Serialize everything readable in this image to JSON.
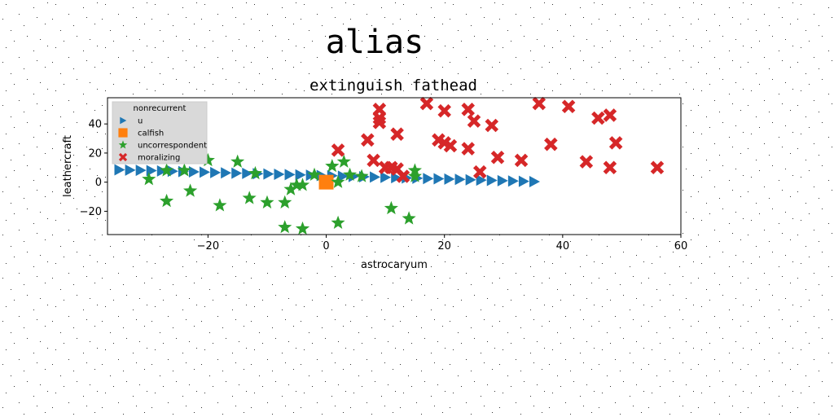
{
  "chart_data": {
    "type": "scatter",
    "suptitle": "alias",
    "title": "extinguish fathead",
    "xlabel": "astrocaryum",
    "ylabel": "leathercraft",
    "xlim": [
      -37,
      60
    ],
    "ylim": [
      -36,
      58
    ],
    "xticks": [
      -20,
      0,
      20,
      40,
      60
    ],
    "yticks": [
      -20,
      0,
      20,
      40
    ],
    "xtick_labels": [
      "−20",
      "0",
      "20",
      "40",
      "60"
    ],
    "ytick_labels": [
      "−20",
      "0",
      "20",
      "40"
    ],
    "grid": false,
    "legend": {
      "title": "nonrecurrent",
      "placement": "top-left"
    },
    "series": [
      {
        "name": "u",
        "marker": "triangle-right",
        "color": "#1f77b4",
        "points": [
          [
            -35,
            8.5
          ],
          [
            -33.2,
            8.3
          ],
          [
            -31.4,
            8.1
          ],
          [
            -29.6,
            7.9
          ],
          [
            -27.8,
            7.7
          ],
          [
            -26,
            7.5
          ],
          [
            -24.2,
            7.3
          ],
          [
            -22.4,
            7.1
          ],
          [
            -20.6,
            6.9
          ],
          [
            -18.8,
            6.6
          ],
          [
            -17,
            6.4
          ],
          [
            -15.2,
            6.2
          ],
          [
            -13.4,
            6
          ],
          [
            -11.6,
            5.8
          ],
          [
            -9.8,
            5.6
          ],
          [
            -8,
            5.4
          ],
          [
            -6.2,
            5.2
          ],
          [
            -4.4,
            5
          ],
          [
            -2.6,
            4.8
          ],
          [
            -0.8,
            4.6
          ],
          [
            1,
            4.4
          ],
          [
            2.8,
            4.1
          ],
          [
            4.6,
            3.9
          ],
          [
            6.4,
            3.7
          ],
          [
            8.2,
            3.5
          ],
          [
            10,
            3.3
          ],
          [
            11.8,
            3.1
          ],
          [
            13.6,
            2.9
          ],
          [
            15.4,
            2.7
          ],
          [
            17.2,
            2.5
          ],
          [
            19,
            2.3
          ],
          [
            20.8,
            2.1
          ],
          [
            22.6,
            1.9
          ],
          [
            24.4,
            1.6
          ],
          [
            26.2,
            1.4
          ],
          [
            28,
            1.2
          ],
          [
            29.8,
            1
          ],
          [
            31.6,
            0.8
          ],
          [
            33.4,
            0.6
          ],
          [
            35.2,
            0.4
          ]
        ]
      },
      {
        "name": "calfish",
        "marker": "square",
        "color": "#ff7f0e",
        "points": [
          [
            0,
            0
          ]
        ]
      },
      {
        "name": "uncorrespondent",
        "marker": "star",
        "color": "#2ca02c",
        "points": [
          [
            -30,
            2
          ],
          [
            -27,
            -13
          ],
          [
            -27,
            8
          ],
          [
            -24,
            8
          ],
          [
            -23,
            -6
          ],
          [
            -20,
            15
          ],
          [
            -18,
            -16
          ],
          [
            -15,
            14
          ],
          [
            -13,
            -11
          ],
          [
            -12,
            6
          ],
          [
            -10,
            -14
          ],
          [
            -7,
            -14
          ],
          [
            -7,
            -31
          ],
          [
            -6,
            -5
          ],
          [
            -5,
            -2
          ],
          [
            -4,
            -32
          ],
          [
            -4,
            -2
          ],
          [
            -2,
            5
          ],
          [
            1,
            11
          ],
          [
            2,
            -28
          ],
          [
            2,
            0
          ],
          [
            3,
            14
          ],
          [
            4,
            5
          ],
          [
            6,
            4
          ],
          [
            11,
            -18
          ],
          [
            14,
            -25
          ],
          [
            15,
            4
          ],
          [
            15,
            8
          ]
        ]
      },
      {
        "name": "moralizing",
        "marker": "x",
        "color": "#d62728",
        "points": [
          [
            2,
            22
          ],
          [
            7,
            29
          ],
          [
            8,
            15
          ],
          [
            9,
            50
          ],
          [
            9,
            44
          ],
          [
            9,
            41
          ],
          [
            10,
            10
          ],
          [
            11,
            10
          ],
          [
            12,
            9
          ],
          [
            12,
            33
          ],
          [
            13,
            4
          ],
          [
            17,
            54
          ],
          [
            19,
            29
          ],
          [
            20,
            49
          ],
          [
            20,
            27
          ],
          [
            21,
            25
          ],
          [
            24,
            23
          ],
          [
            24,
            50
          ],
          [
            25,
            42
          ],
          [
            26,
            7
          ],
          [
            28,
            39
          ],
          [
            29,
            17
          ],
          [
            33,
            15
          ],
          [
            36,
            54
          ],
          [
            38,
            26
          ],
          [
            41,
            52
          ],
          [
            44,
            14
          ],
          [
            46,
            44
          ],
          [
            48,
            10
          ],
          [
            48,
            46
          ],
          [
            49,
            27
          ],
          [
            56,
            10
          ]
        ]
      }
    ]
  }
}
